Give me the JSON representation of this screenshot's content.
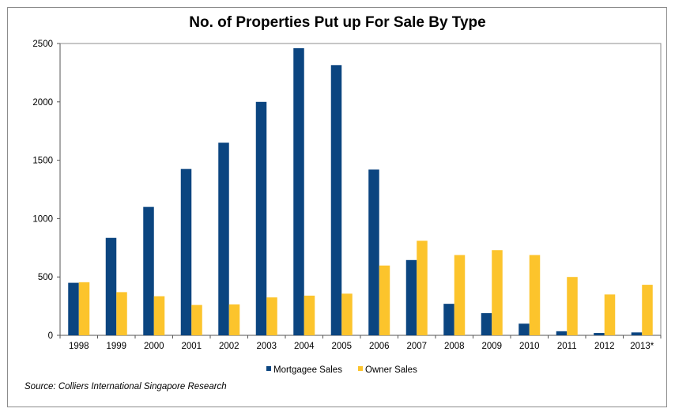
{
  "chart_data": {
    "type": "bar",
    "title": "No. of Properties Put up For Sale By Type",
    "xlabel": "",
    "ylabel": "",
    "ylim": [
      0,
      2500
    ],
    "yticks": [
      0,
      500,
      1000,
      1500,
      2000,
      2500
    ],
    "grid": false,
    "legend": "bottom",
    "categories": [
      "1998",
      "1999",
      "2000",
      "2001",
      "2002",
      "2003",
      "2004",
      "2005",
      "2006",
      "2007",
      "2008",
      "2009",
      "2010",
      "2011",
      "2012",
      "2013*"
    ],
    "series": [
      {
        "name": "Mortgagee Sales",
        "color": "#0b4580",
        "values": [
          450,
          835,
          1100,
          1425,
          1650,
          2000,
          2460,
          2315,
          1420,
          645,
          270,
          190,
          100,
          35,
          20,
          25
        ]
      },
      {
        "name": "Owner Sales",
        "color": "#fcc42c",
        "values": [
          455,
          370,
          335,
          260,
          265,
          325,
          340,
          357,
          598,
          810,
          688,
          730,
          688,
          500,
          350,
          433
        ]
      }
    ],
    "source": "Source: Colliers International Singapore Research"
  }
}
